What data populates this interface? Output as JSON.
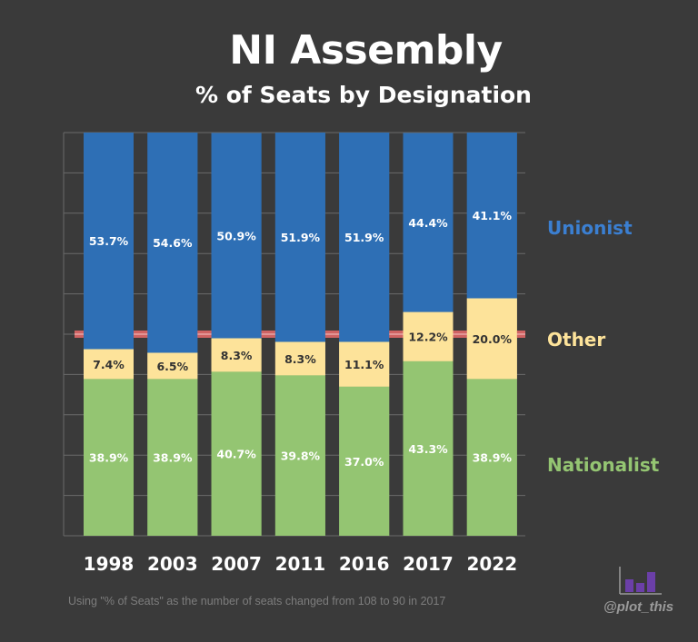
{
  "title": "NI Assembly",
  "subtitle": "% of Seats by Designation",
  "footnote": "Using \"% of Seats\" as the number of seats changed from 108 to 90 in 2017",
  "credit": "@plot_this",
  "colors": {
    "background": "#3a3a3a",
    "unionist": "#2e6fb5",
    "other": "#fde39a",
    "nationalist": "#94c572",
    "marker": "#e06868",
    "unionist_label": "#3b7fd1",
    "other_label": "#fde39a",
    "nationalist_label": "#94c572",
    "logo": "#6b3fa8"
  },
  "logo_icon": "bar-chart-icon",
  "chart_data": {
    "type": "bar",
    "stacked": true,
    "categories": [
      "1998",
      "2003",
      "2007",
      "2011",
      "2016",
      "2017",
      "2022"
    ],
    "series": [
      {
        "name": "Nationalist",
        "values": [
          38.9,
          38.9,
          40.7,
          39.8,
          37.0,
          43.3,
          38.9
        ],
        "labels": [
          "38.9%",
          "38.9%",
          "40.7%",
          "39.8%",
          "37.0%",
          "43.3%",
          "38.9%"
        ]
      },
      {
        "name": "Other",
        "values": [
          7.4,
          6.5,
          8.3,
          8.3,
          11.1,
          12.2,
          20.0
        ],
        "labels": [
          "7.4%",
          "6.5%",
          "8.3%",
          "8.3%",
          "11.1%",
          "12.2%",
          "20.0%"
        ]
      },
      {
        "name": "Unionist",
        "values": [
          53.7,
          54.6,
          50.9,
          51.9,
          51.9,
          44.4,
          41.1
        ],
        "labels": [
          "53.7%",
          "54.6%",
          "50.9%",
          "51.9%",
          "51.9%",
          "44.4%",
          "41.1%"
        ]
      }
    ],
    "legend": [
      "Unionist",
      "Other",
      "Nationalist"
    ],
    "legend_placement": "right",
    "ylim": [
      0,
      100
    ],
    "reference_line": 50,
    "title": "NI Assembly",
    "subtitle": "% of Seats by Designation"
  }
}
